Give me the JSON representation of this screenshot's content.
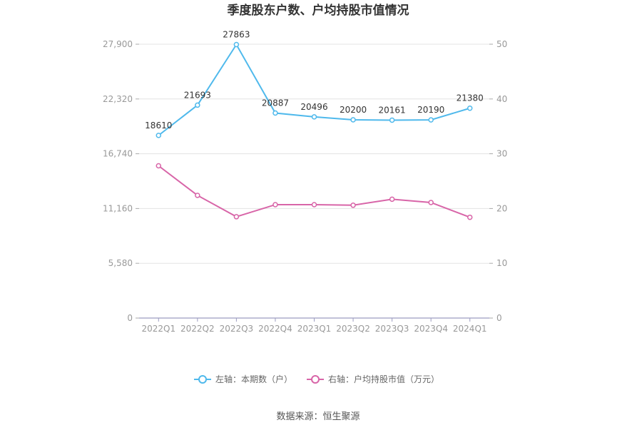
{
  "title": "季度股东户数、户均持股市值情况",
  "source": "数据来源：恒生聚源",
  "chart_data": {
    "type": "line",
    "categories": [
      "2022Q1",
      "2022Q2",
      "2022Q3",
      "2022Q4",
      "2023Q1",
      "2023Q2",
      "2023Q3",
      "2023Q4",
      "2024Q1"
    ],
    "y_left": {
      "ticks": [
        "0",
        "5,580",
        "11,160",
        "16,740",
        "22,320",
        "27,900"
      ],
      "lim": [
        0,
        27900
      ]
    },
    "y_right": {
      "ticks": [
        "0",
        "10",
        "20",
        "30",
        "40",
        "50"
      ],
      "lim": [
        0,
        50
      ]
    },
    "grid": true,
    "legend_position": "bottom",
    "series": [
      {
        "name": "左轴：本期数（户）",
        "axis": "left",
        "color": "#4fb9ec",
        "values": [
          18610,
          21693,
          27863,
          20887,
          20496,
          20200,
          20161,
          20190,
          21380
        ],
        "labels": [
          "18610",
          "21693",
          "27863",
          "20887",
          "20496",
          "20200",
          "20161",
          "20190",
          "21380"
        ]
      },
      {
        "name": "右轴：户均持股市值（万元）",
        "axis": "right",
        "color": "#d865a8",
        "values": [
          27.8,
          22.4,
          18.5,
          20.7,
          20.7,
          20.6,
          21.7,
          21.1,
          18.4
        ]
      }
    ]
  }
}
